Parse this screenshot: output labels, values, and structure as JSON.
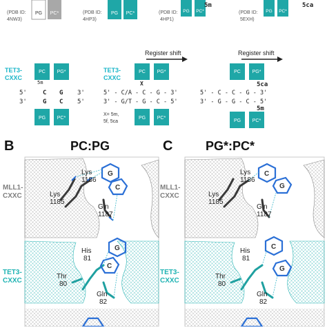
{
  "top_row": {
    "panels": [
      {
        "pdb_line1": "(PDB ID:",
        "pdb_line2": "4NW3)",
        "left_block": "PG",
        "right_block": "PC*",
        "color": "gray"
      },
      {
        "pdb_line1": "(PDB ID:",
        "pdb_line2": "4HP3)",
        "left_block": "PG",
        "right_block": "PC*",
        "color": "teal"
      },
      {
        "pdb_line1": "(PDB ID:",
        "pdb_line2": "4HP1)",
        "left_block": "PG",
        "right_block": "PC*",
        "color": "teal",
        "mod": "5m"
      },
      {
        "pdb_line1": "(PDB ID:",
        "pdb_line2": "5EXH)",
        "left_block": "PG",
        "right_block": "PC*",
        "color": "teal",
        "mod": "5ca"
      }
    ]
  },
  "middle_row": {
    "left": {
      "tet3_line1": "TET3-",
      "tet3_line2": "CXXC",
      "top_blocks": [
        "PC",
        "PG*"
      ],
      "bottom_blocks": [
        "PG",
        "PC*"
      ],
      "top_strand_5": "5'",
      "top_strand_3": "3'",
      "bottom_strand_3": "3'",
      "bottom_strand_5": "5'",
      "mod_label": "5m",
      "bases_top": [
        "C",
        "G"
      ],
      "bases_bottom": [
        "G",
        "C"
      ]
    },
    "center": {
      "tet3_line1": "TET3-",
      "tet3_line2": "CXXC",
      "register_shift": "Register shift",
      "top_blocks": [
        "PC",
        "PG*"
      ],
      "bottom_blocks": [
        "PG",
        "PC*"
      ],
      "top_strand": "5' - C/A - C - G - 3'",
      "bottom_strand": "3' - G/T - G - C - 5'",
      "x_label": "X",
      "note_line1": "X= 5m,",
      "note_line2": "5f, 5ca"
    },
    "right": {
      "register_shift": "Register shift",
      "top_blocks": [
        "PC",
        "PG*"
      ],
      "bottom_blocks": [
        "PG",
        "PC*"
      ],
      "top_strand": "5' - C - C - G - 3'",
      "bottom_strand": "3' - G - G - C - 5'",
      "mod_top": "5ca",
      "mod_bottom": "5m"
    }
  },
  "bottom": {
    "panel_b": {
      "letter": "B",
      "title": "PC:PG"
    },
    "panel_c": {
      "letter": "C",
      "title": "PG*:PC*"
    },
    "row_labels": [
      {
        "line1": "MLL1-",
        "line2": "CXXC",
        "color": "#7f7f7f"
      },
      {
        "line1": "TET3-",
        "line2": "CXXC",
        "color": "#1fb3b3"
      }
    ],
    "b_mll1": {
      "res1": "Lys",
      "res1_num": "1186",
      "res2": "Lys",
      "res2_num": "1185",
      "res3": "Gln",
      "res3_num": "1187",
      "base1": "G",
      "base2": "C"
    },
    "b_tet3": {
      "res1": "His",
      "res1_num": "81",
      "res2": "Thr",
      "res2_num": "80",
      "res3": "Gln",
      "res3_num": "82",
      "base1": "G",
      "base2": "C"
    },
    "c_mll1": {
      "res1": "Lys",
      "res1_num": "1186",
      "res2": "Lys",
      "res2_num": "1185",
      "res3": "Gln",
      "res3_num": "1187",
      "base1": "C",
      "base2": "G"
    },
    "c_tet3": {
      "res1": "His",
      "res1_num": "81",
      "res2": "Thr",
      "res2_num": "80",
      "res3": "Gln",
      "res3_num": "82",
      "base1": "C",
      "base2": "G"
    }
  },
  "colors": {
    "teal": "#1fa7a7",
    "gray": "#a8a8a8",
    "cyan_label": "#19b5c8",
    "dark": "#333333"
  }
}
